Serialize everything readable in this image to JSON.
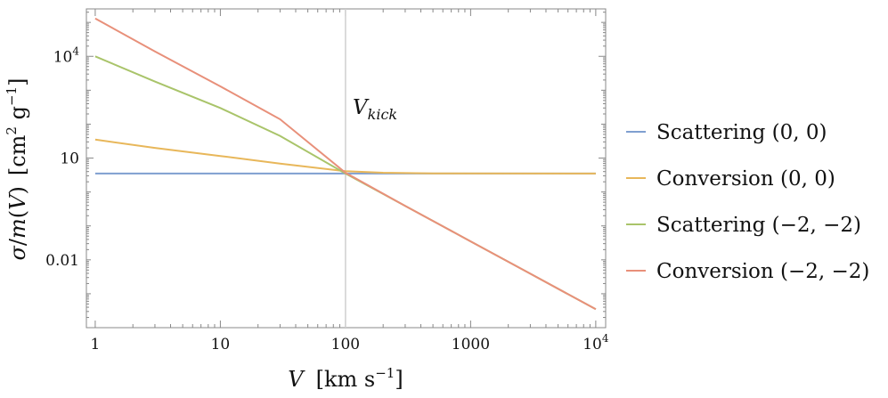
{
  "chart_data": {
    "type": "line",
    "xscale": "log",
    "yscale": "log",
    "xlim": [
      0.85,
      12000
    ],
    "ylim": [
      0.0001,
      250000
    ],
    "x_ticks": [
      {
        "value": 1,
        "label": "1"
      },
      {
        "value": 10,
        "label": "10"
      },
      {
        "value": 100,
        "label": "100"
      },
      {
        "value": 1000,
        "label": "1000"
      },
      {
        "value": 10000,
        "label": "10^4"
      }
    ],
    "y_ticks": [
      {
        "value": 0.01,
        "label": "0.01"
      },
      {
        "value": 10,
        "label": "10"
      },
      {
        "value": 10000,
        "label": "10^4"
      }
    ],
    "xlabel": "V  [km s^-1]",
    "ylabel": "σ/m(V)  [cm^2 g^-1]",
    "annotation": {
      "text": "V_kick",
      "x": 100
    },
    "vline": 100,
    "legend_position": "right",
    "series": [
      {
        "name": "Scattering (0, 0)",
        "color": "#7f9fd0",
        "x": [
          1,
          10,
          100,
          1000,
          10000
        ],
        "y": [
          3.5,
          3.5,
          3.5,
          3.5,
          3.5
        ]
      },
      {
        "name": "Conversion (0, 0)",
        "color": "#e8b75a",
        "x": [
          1,
          3,
          10,
          30,
          100,
          200,
          500,
          10000
        ],
        "y": [
          35,
          20,
          11.5,
          6.9,
          4.1,
          3.7,
          3.55,
          3.5
        ]
      },
      {
        "name": "Scattering (−2, −2)",
        "color": "#a9c46a",
        "x": [
          1,
          3,
          10,
          30,
          100,
          300,
          1000,
          3000,
          10000
        ],
        "y": [
          10000,
          1800,
          300,
          45,
          3.5,
          0.39,
          0.035,
          0.0039,
          0.00035
        ]
      },
      {
        "name": "Conversion (−2, −2)",
        "color": "#e8907a",
        "x": [
          1,
          3,
          10,
          30,
          100,
          300,
          1000,
          3000,
          10000
        ],
        "y": [
          130000,
          14000,
          1300,
          140,
          3.7,
          0.39,
          0.035,
          0.0039,
          0.00035
        ]
      }
    ]
  }
}
